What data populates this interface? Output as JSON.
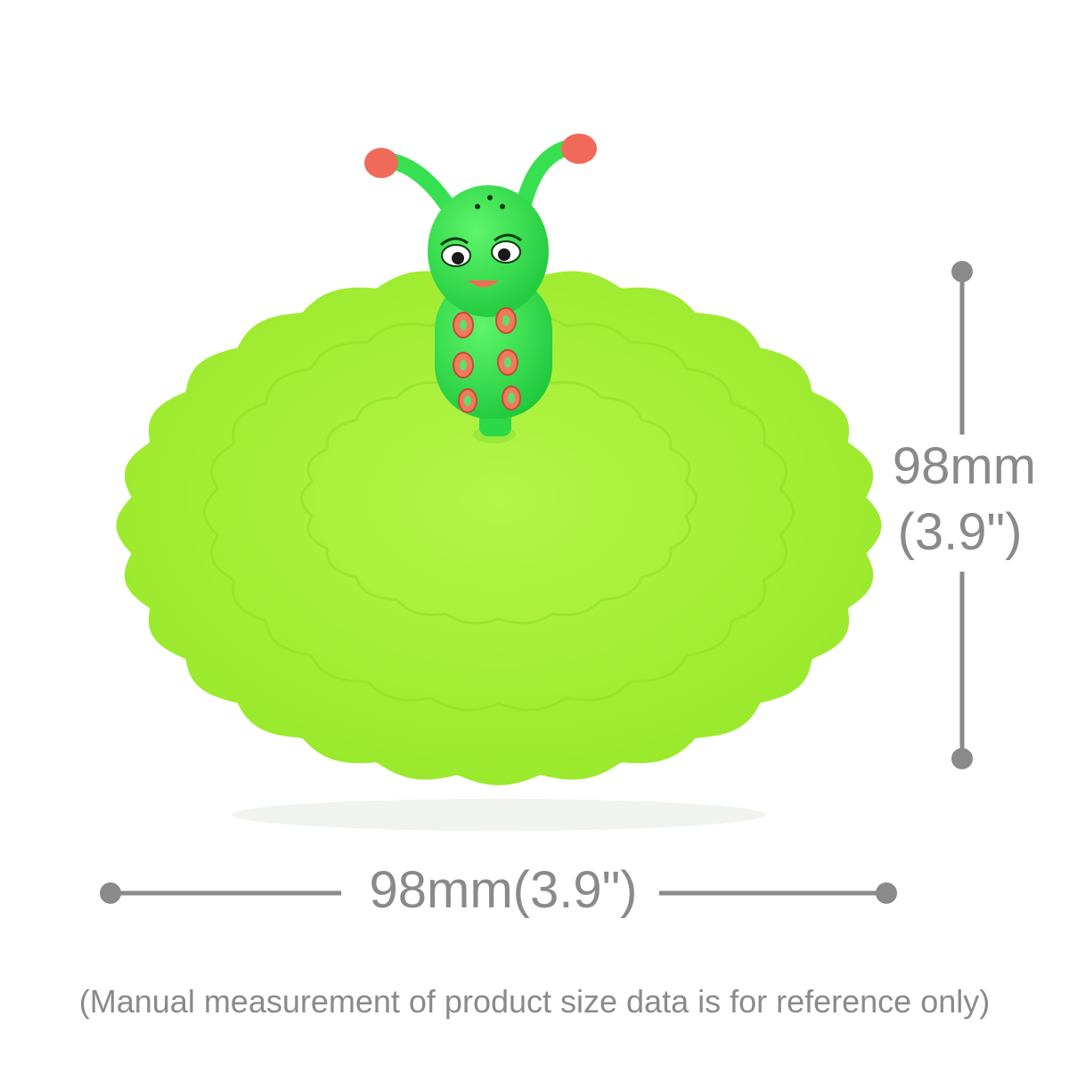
{
  "product": {
    "description_icon": "silicone-cup-lid-caterpillar",
    "lid_color": "#a6f032",
    "figure_color": "#2fe04c"
  },
  "dimensions": {
    "height_mm": "98mm",
    "height_in": "(3.9\")",
    "width_label": "98mm(3.9\")",
    "line_color": "#8a8a8a"
  },
  "footnote": "(Manual measurement of product size data is for reference only)"
}
